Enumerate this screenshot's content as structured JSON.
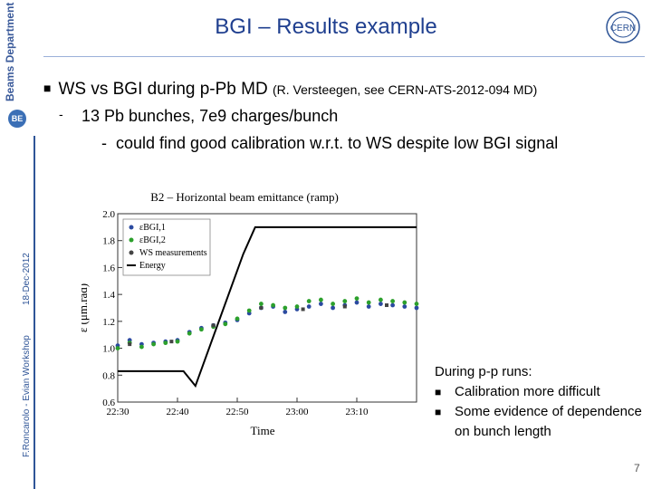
{
  "sidebar": {
    "department": "Beams Department",
    "logo_text": "BE",
    "author_event": "F.Roncarolo - Evian Workshop",
    "date": "18-Dec-2012"
  },
  "header": {
    "title": "BGI – Results example",
    "logo": "CERN"
  },
  "body": {
    "bullet1": "WS vs BGI during p-Pb MD",
    "bullet1_ref": "(R. Versteegen, see CERN-ATS-2012-094 MD)",
    "bullet2": "13 Pb bunches, 7e9 charges/bunch",
    "bullet3": "could find good calibration w.r.t. to WS despite low BGI signal",
    "sub_dash": "-"
  },
  "note": {
    "heading": "During p-p runs:",
    "items": [
      "Calibration more difficult",
      "Some evidence of dependence on bunch length"
    ]
  },
  "page_number": "7",
  "colors": {
    "title": "#1f3f8f",
    "bgi1": "#2b4aa0",
    "bgi2": "#2ca02c",
    "ws": "#444444",
    "energy": "#000000"
  },
  "chart_data": {
    "type": "scatter",
    "title": "B2 – Horizontal beam emittance (ramp)",
    "xlabel": "Time",
    "ylabel": "ε (μm.rad)",
    "xlim": [
      0,
      50
    ],
    "ylim": [
      0.6,
      2.0
    ],
    "x_ticks": [
      0,
      10,
      20,
      30,
      40
    ],
    "x_tick_labels": [
      "22:30",
      "22:40",
      "22:50",
      "23:00",
      "23:10"
    ],
    "y_ticks": [
      0.6,
      0.8,
      1.0,
      1.2,
      1.4,
      1.6,
      1.8,
      2.0
    ],
    "y_tick_labels": [
      "0.6",
      "0.8",
      "1.0",
      "1.2",
      "1.4",
      "1.6",
      "1.8",
      "2.0"
    ],
    "legend": [
      "εBGI,1",
      "εBGI,2",
      "WS measurements",
      "Energy"
    ],
    "legend_placement": "top-left",
    "series": [
      {
        "name": "εBGI,1",
        "x": [
          0,
          2,
          4,
          6,
          8,
          10,
          12,
          14,
          16,
          18,
          20,
          22,
          24,
          26,
          28,
          30,
          32,
          34,
          36,
          38,
          40,
          42,
          44,
          46,
          48,
          50
        ],
        "y": [
          1.02,
          1.06,
          1.03,
          1.04,
          1.05,
          1.06,
          1.12,
          1.15,
          1.17,
          1.19,
          1.21,
          1.26,
          1.3,
          1.31,
          1.27,
          1.29,
          1.31,
          1.33,
          1.3,
          1.32,
          1.34,
          1.31,
          1.33,
          1.32,
          1.31,
          1.3
        ]
      },
      {
        "name": "εBGI,2",
        "x": [
          0,
          2,
          4,
          6,
          8,
          10,
          12,
          14,
          16,
          18,
          20,
          22,
          24,
          26,
          28,
          30,
          32,
          34,
          36,
          38,
          40,
          42,
          44,
          46,
          48,
          50
        ],
        "y": [
          1.0,
          1.04,
          1.01,
          1.03,
          1.04,
          1.05,
          1.11,
          1.14,
          1.16,
          1.18,
          1.22,
          1.28,
          1.33,
          1.32,
          1.3,
          1.31,
          1.35,
          1.36,
          1.33,
          1.35,
          1.37,
          1.34,
          1.36,
          1.35,
          1.34,
          1.33
        ]
      },
      {
        "name": "WS measurements",
        "x": [
          2,
          9,
          16,
          24,
          31,
          38,
          45
        ],
        "y": [
          1.03,
          1.05,
          1.17,
          1.3,
          1.29,
          1.31,
          1.32
        ]
      },
      {
        "name": "Energy",
        "x": [
          0,
          11,
          13,
          21,
          23,
          50
        ],
        "y": [
          0.83,
          0.83,
          0.72,
          1.7,
          1.9,
          1.9
        ]
      }
    ]
  }
}
